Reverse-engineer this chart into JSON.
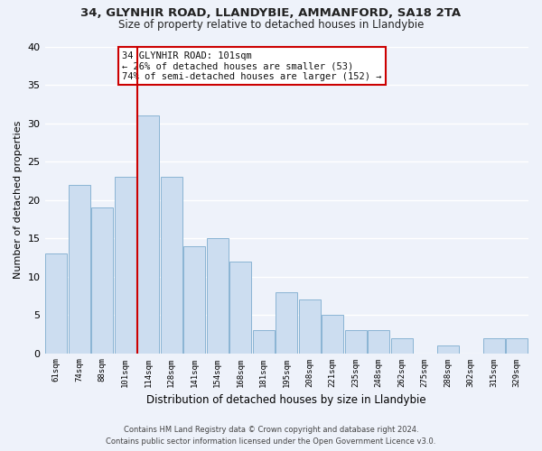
{
  "title1": "34, GLYNHIR ROAD, LLANDYBIE, AMMANFORD, SA18 2TA",
  "title2": "Size of property relative to detached houses in Llandybie",
  "xlabel": "Distribution of detached houses by size in Llandybie",
  "ylabel": "Number of detached properties",
  "categories": [
    "61sqm",
    "74sqm",
    "88sqm",
    "101sqm",
    "114sqm",
    "128sqm",
    "141sqm",
    "154sqm",
    "168sqm",
    "181sqm",
    "195sqm",
    "208sqm",
    "221sqm",
    "235sqm",
    "248sqm",
    "262sqm",
    "275sqm",
    "288sqm",
    "302sqm",
    "315sqm",
    "329sqm"
  ],
  "values": [
    13,
    22,
    19,
    23,
    31,
    23,
    14,
    15,
    12,
    3,
    8,
    7,
    5,
    3,
    3,
    2,
    0,
    1,
    0,
    2,
    2
  ],
  "bar_color": "#ccddf0",
  "bar_edge_color": "#8ab4d4",
  "vline_x": 3.5,
  "vline_color": "#cc0000",
  "annotation_title": "34 GLYNHIR ROAD: 101sqm",
  "annotation_line1": "← 26% of detached houses are smaller (53)",
  "annotation_line2": "74% of semi-detached houses are larger (152) →",
  "annotation_box_color": "#ffffff",
  "annotation_box_edge": "#cc0000",
  "ylim": [
    0,
    40
  ],
  "yticks": [
    0,
    5,
    10,
    15,
    20,
    25,
    30,
    35,
    40
  ],
  "footer1": "Contains HM Land Registry data © Crown copyright and database right 2024.",
  "footer2": "Contains public sector information licensed under the Open Government Licence v3.0.",
  "bg_color": "#eef2fa",
  "grid_color": "#ffffff",
  "title_fontsize": 9.5,
  "subtitle_fontsize": 8.5
}
